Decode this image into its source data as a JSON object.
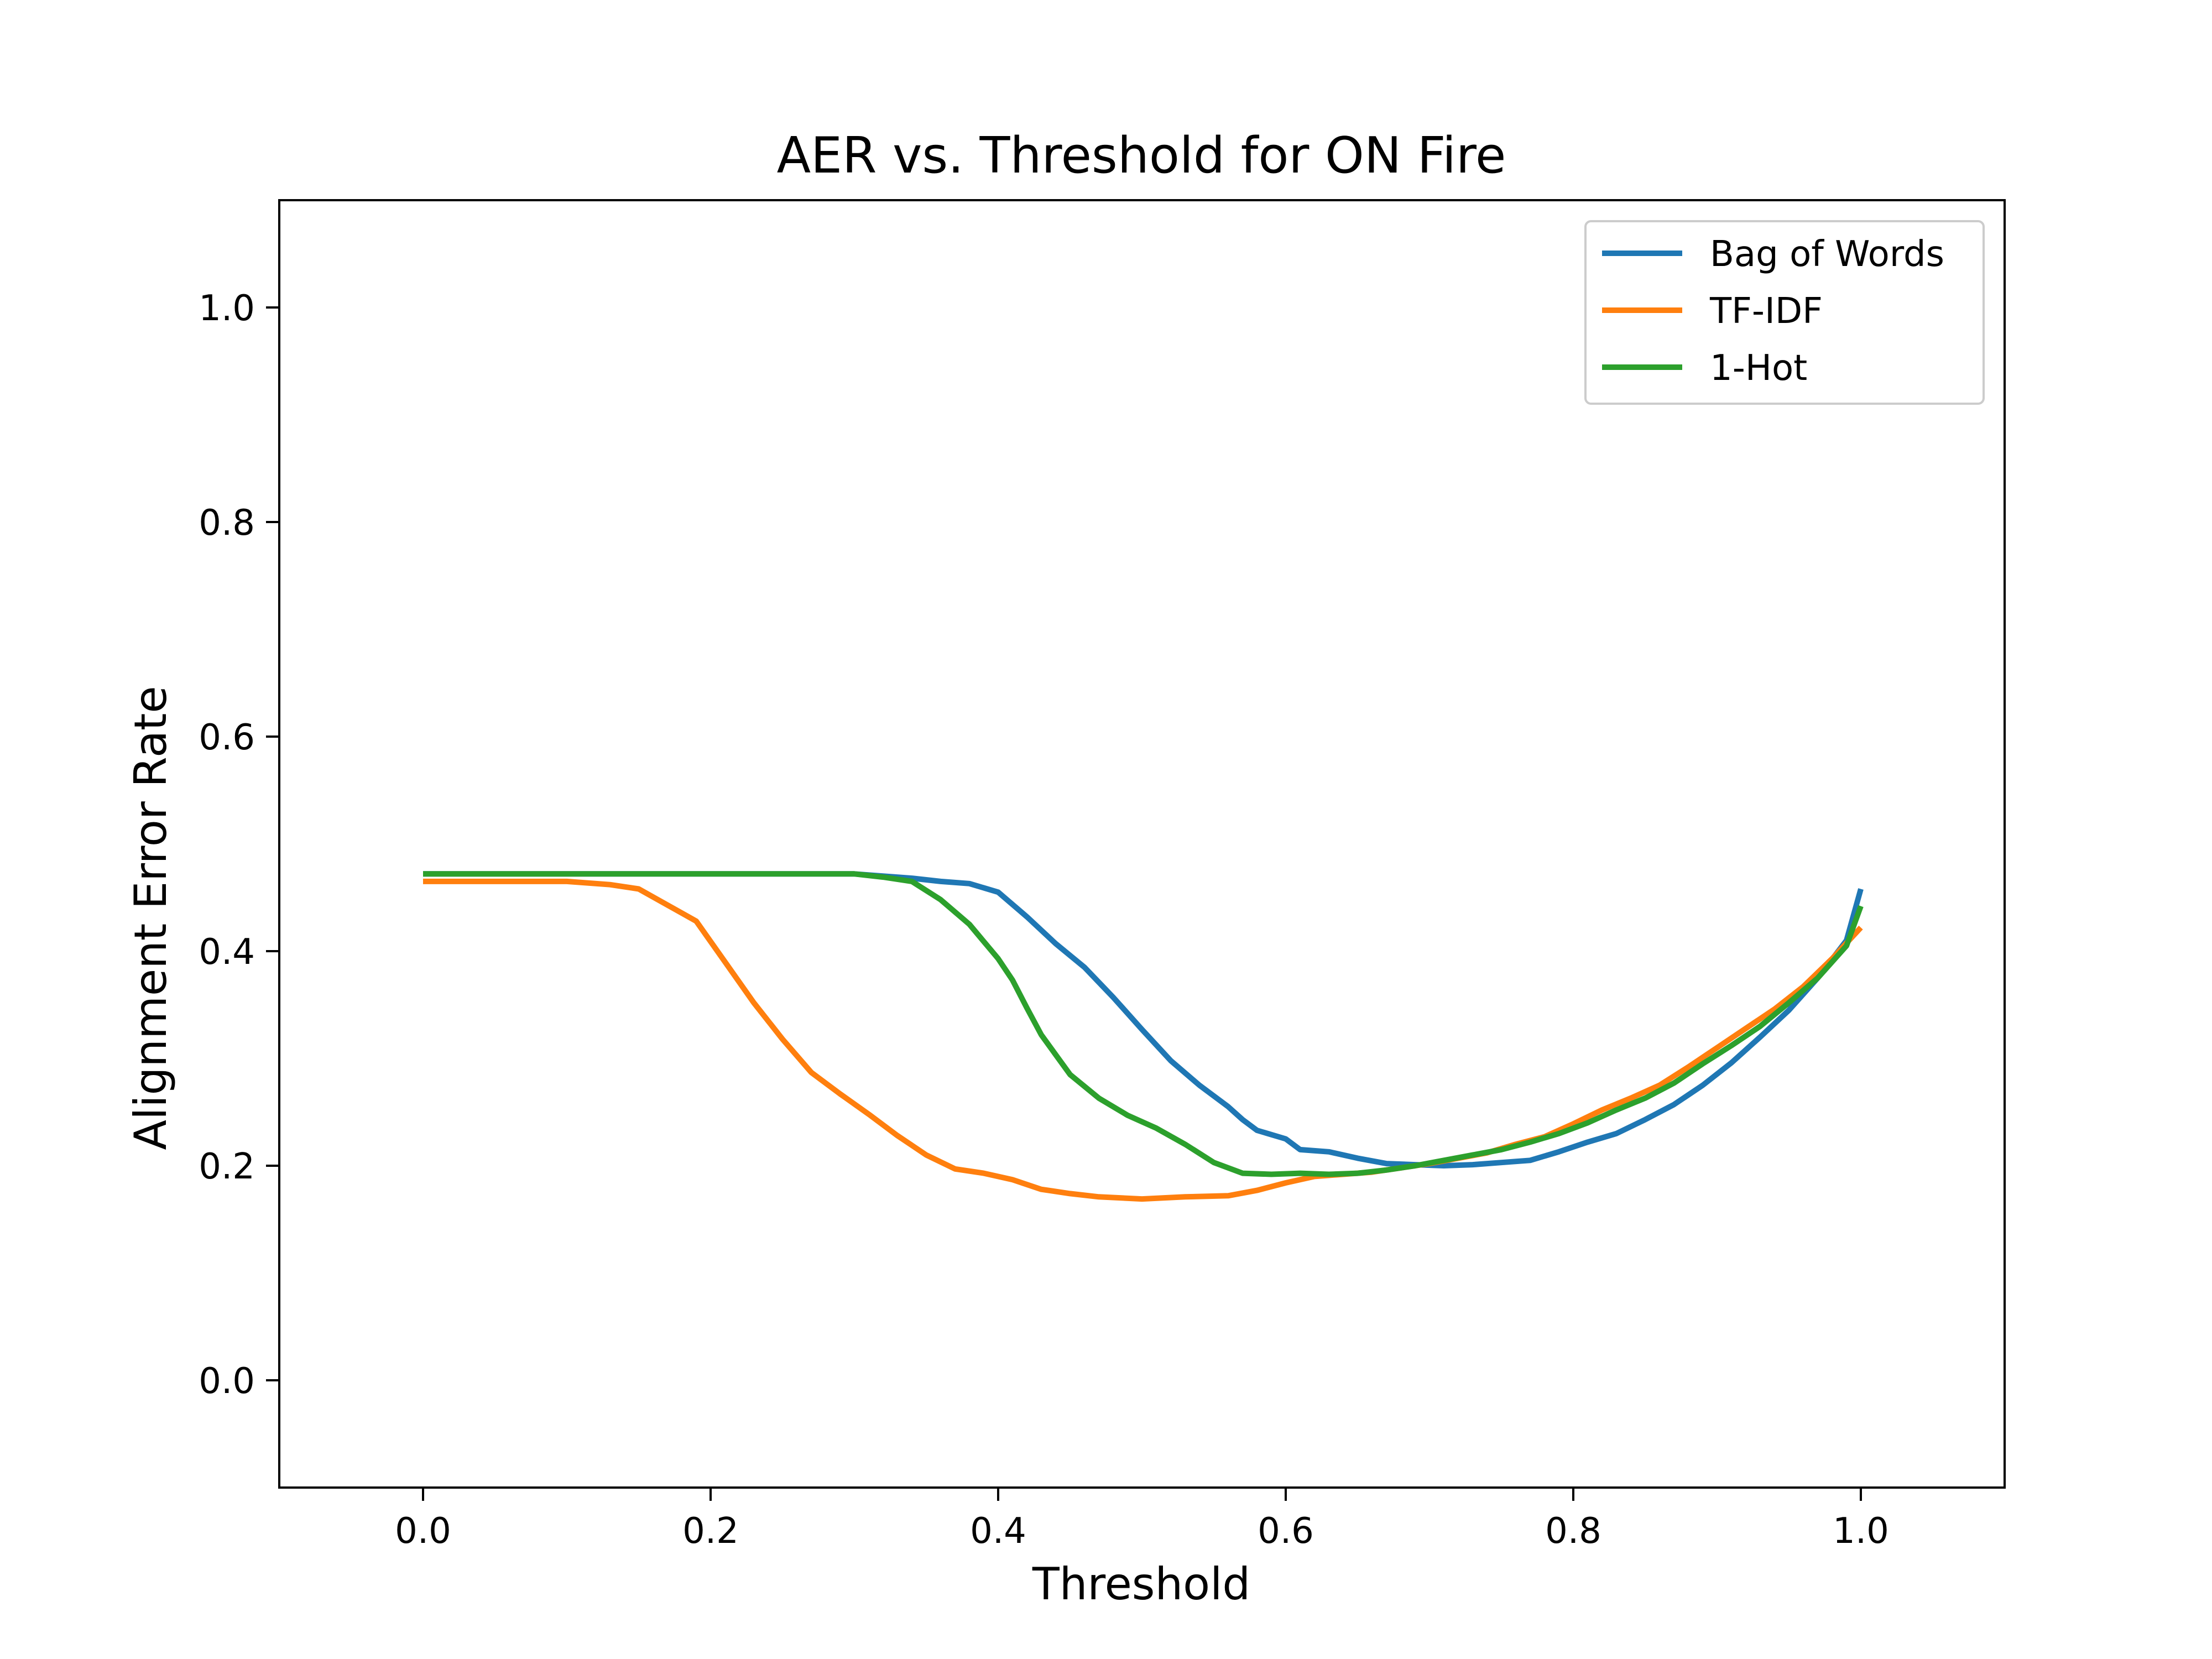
{
  "chart_data": {
    "type": "line",
    "title": "AER vs. Threshold for ON Fire",
    "xlabel": "Threshold",
    "ylabel": "Alignment Error Rate",
    "xlim": [
      -0.1,
      1.1
    ],
    "ylim": [
      -0.1,
      1.1
    ],
    "xticks": [
      "0.0",
      "0.2",
      "0.4",
      "0.6",
      "0.8",
      "1.0"
    ],
    "yticks": [
      "0.0",
      "0.2",
      "0.4",
      "0.6",
      "0.8",
      "1.0"
    ],
    "grid": false,
    "legend_position": "top-right",
    "series": [
      {
        "name": "Bag of Words",
        "color": "#1f77b4",
        "points": [
          [
            0.0,
            0.472
          ],
          [
            0.1,
            0.472
          ],
          [
            0.2,
            0.472
          ],
          [
            0.3,
            0.472
          ],
          [
            0.32,
            0.47
          ],
          [
            0.34,
            0.468
          ],
          [
            0.36,
            0.465
          ],
          [
            0.38,
            0.463
          ],
          [
            0.4,
            0.455
          ],
          [
            0.42,
            0.432
          ],
          [
            0.44,
            0.407
          ],
          [
            0.46,
            0.385
          ],
          [
            0.48,
            0.357
          ],
          [
            0.5,
            0.327
          ],
          [
            0.52,
            0.298
          ],
          [
            0.54,
            0.275
          ],
          [
            0.56,
            0.255
          ],
          [
            0.57,
            0.243
          ],
          [
            0.58,
            0.233
          ],
          [
            0.6,
            0.225
          ],
          [
            0.61,
            0.215
          ],
          [
            0.63,
            0.213
          ],
          [
            0.65,
            0.207
          ],
          [
            0.67,
            0.202
          ],
          [
            0.69,
            0.201
          ],
          [
            0.71,
            0.2
          ],
          [
            0.73,
            0.201
          ],
          [
            0.75,
            0.203
          ],
          [
            0.77,
            0.205
          ],
          [
            0.79,
            0.213
          ],
          [
            0.81,
            0.222
          ],
          [
            0.83,
            0.23
          ],
          [
            0.85,
            0.243
          ],
          [
            0.87,
            0.257
          ],
          [
            0.89,
            0.275
          ],
          [
            0.91,
            0.296
          ],
          [
            0.93,
            0.32
          ],
          [
            0.95,
            0.345
          ],
          [
            0.97,
            0.375
          ],
          [
            0.99,
            0.41
          ],
          [
            1.0,
            0.458
          ]
        ]
      },
      {
        "name": "TF-IDF",
        "color": "#ff7f0e",
        "points": [
          [
            0.0,
            0.465
          ],
          [
            0.05,
            0.465
          ],
          [
            0.1,
            0.465
          ],
          [
            0.13,
            0.462
          ],
          [
            0.15,
            0.458
          ],
          [
            0.17,
            0.443
          ],
          [
            0.19,
            0.428
          ],
          [
            0.21,
            0.39
          ],
          [
            0.23,
            0.352
          ],
          [
            0.25,
            0.318
          ],
          [
            0.27,
            0.287
          ],
          [
            0.29,
            0.267
          ],
          [
            0.31,
            0.248
          ],
          [
            0.33,
            0.228
          ],
          [
            0.35,
            0.21
          ],
          [
            0.37,
            0.197
          ],
          [
            0.39,
            0.193
          ],
          [
            0.41,
            0.187
          ],
          [
            0.43,
            0.178
          ],
          [
            0.45,
            0.174
          ],
          [
            0.47,
            0.171
          ],
          [
            0.5,
            0.169
          ],
          [
            0.53,
            0.171
          ],
          [
            0.56,
            0.172
          ],
          [
            0.58,
            0.177
          ],
          [
            0.6,
            0.184
          ],
          [
            0.62,
            0.19
          ],
          [
            0.64,
            0.192
          ],
          [
            0.66,
            0.194
          ],
          [
            0.68,
            0.198
          ],
          [
            0.7,
            0.202
          ],
          [
            0.72,
            0.207
          ],
          [
            0.74,
            0.212
          ],
          [
            0.76,
            0.22
          ],
          [
            0.78,
            0.227
          ],
          [
            0.8,
            0.239
          ],
          [
            0.82,
            0.252
          ],
          [
            0.84,
            0.263
          ],
          [
            0.86,
            0.275
          ],
          [
            0.88,
            0.292
          ],
          [
            0.9,
            0.31
          ],
          [
            0.92,
            0.328
          ],
          [
            0.94,
            0.346
          ],
          [
            0.96,
            0.367
          ],
          [
            0.98,
            0.393
          ],
          [
            1.0,
            0.422
          ]
        ]
      },
      {
        "name": "1-Hot",
        "color": "#2ca02c",
        "points": [
          [
            0.0,
            0.472
          ],
          [
            0.1,
            0.472
          ],
          [
            0.2,
            0.472
          ],
          [
            0.3,
            0.472
          ],
          [
            0.32,
            0.469
          ],
          [
            0.34,
            0.465
          ],
          [
            0.36,
            0.448
          ],
          [
            0.38,
            0.425
          ],
          [
            0.4,
            0.393
          ],
          [
            0.41,
            0.373
          ],
          [
            0.42,
            0.347
          ],
          [
            0.43,
            0.322
          ],
          [
            0.45,
            0.285
          ],
          [
            0.47,
            0.263
          ],
          [
            0.49,
            0.247
          ],
          [
            0.51,
            0.235
          ],
          [
            0.53,
            0.22
          ],
          [
            0.55,
            0.203
          ],
          [
            0.57,
            0.193
          ],
          [
            0.59,
            0.192
          ],
          [
            0.61,
            0.193
          ],
          [
            0.63,
            0.192
          ],
          [
            0.65,
            0.193
          ],
          [
            0.67,
            0.196
          ],
          [
            0.69,
            0.2
          ],
          [
            0.71,
            0.205
          ],
          [
            0.73,
            0.21
          ],
          [
            0.75,
            0.215
          ],
          [
            0.77,
            0.222
          ],
          [
            0.79,
            0.23
          ],
          [
            0.81,
            0.24
          ],
          [
            0.83,
            0.252
          ],
          [
            0.85,
            0.263
          ],
          [
            0.87,
            0.277
          ],
          [
            0.89,
            0.295
          ],
          [
            0.91,
            0.312
          ],
          [
            0.93,
            0.33
          ],
          [
            0.95,
            0.352
          ],
          [
            0.97,
            0.375
          ],
          [
            0.99,
            0.405
          ],
          [
            1.0,
            0.442
          ]
        ]
      }
    ]
  }
}
